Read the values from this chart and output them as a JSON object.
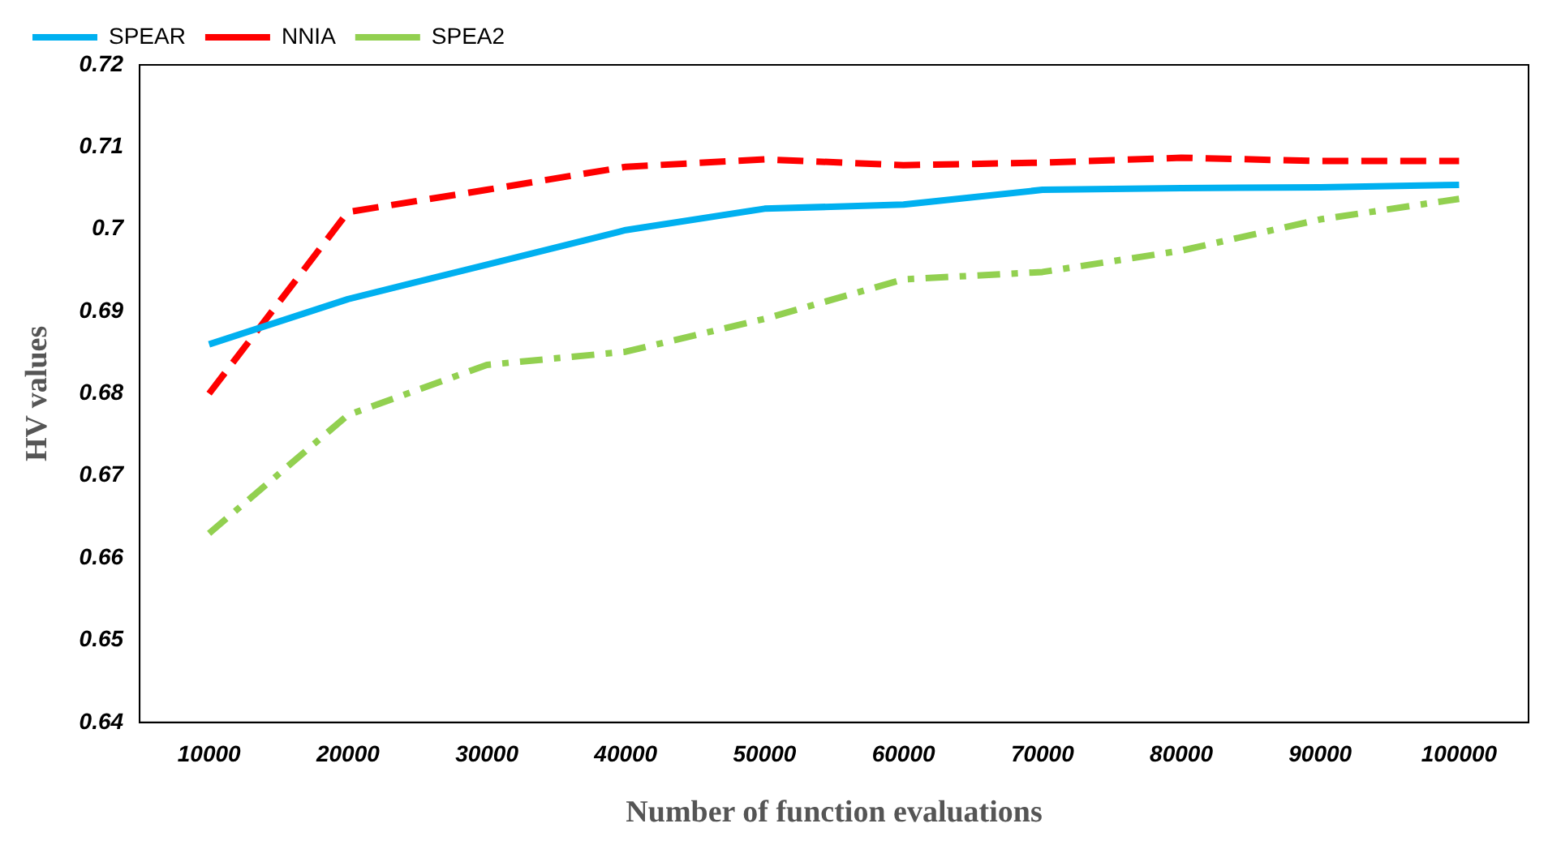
{
  "chart_data": {
    "type": "line",
    "xlabel": "Number of function evaluations",
    "ylabel": "HV values",
    "categories": [
      "10000",
      "20000",
      "30000",
      "40000",
      "50000",
      "60000",
      "70000",
      "80000",
      "90000",
      "100000"
    ],
    "series": [
      {
        "name": "SPEAR",
        "color": "#00b0f0",
        "line_style": "solid",
        "values": [
          0.686,
          0.6915,
          0.6957,
          0.6999,
          0.7025,
          0.703,
          0.7048,
          0.705,
          0.7051,
          0.7054
        ]
      },
      {
        "name": "NNIA",
        "color": "#ff0000",
        "line_style": "dashed",
        "values": [
          0.68,
          0.7021,
          0.7048,
          0.7076,
          0.7085,
          0.7078,
          0.7081,
          0.7087,
          0.7083,
          0.7083
        ]
      },
      {
        "name": "SPEA2",
        "color": "#92d050",
        "line_style": "dashdot",
        "values": [
          0.663,
          0.6774,
          0.6835,
          0.6851,
          0.6891,
          0.6939,
          0.6948,
          0.6974,
          0.7012,
          0.7037
        ]
      }
    ],
    "ylim": [
      0.64,
      0.72
    ],
    "yticks": [
      0.64,
      0.65,
      0.66,
      0.67,
      0.68,
      0.69,
      0.7,
      0.71,
      0.72
    ],
    "grid": false,
    "legend": "top left",
    "marker": "none"
  }
}
